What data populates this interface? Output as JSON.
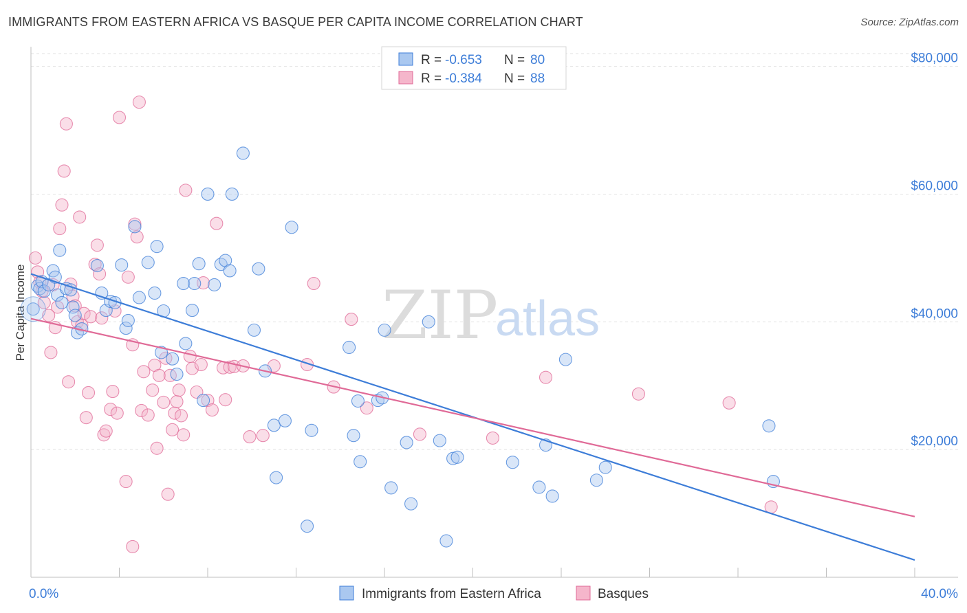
{
  "title": "IMMIGRANTS FROM EASTERN AFRICA VS BASQUE PER CAPITA INCOME CORRELATION CHART",
  "source": "Source: ZipAtlas.com",
  "watermark": {
    "zip": "ZIP",
    "atlas": "atlas"
  },
  "colors": {
    "blue": "#3d7dd8",
    "blue_fill": "#aac8f0",
    "pink": "#e06a97",
    "pink_fill": "#f5b6cb",
    "grid": "#e2e2e2",
    "axis": "#bfbfbf"
  },
  "chart_data": {
    "type": "scatter",
    "title": "IMMIGRANTS FROM EASTERN AFRICA VS BASQUE PER CAPITA INCOME CORRELATION CHART",
    "xlabel": "",
    "ylabel": "Per Capita Income",
    "xlim": [
      0,
      40
    ],
    "ylim": [
      0,
      82000
    ],
    "x_tick_labels": [
      "0.0%",
      "40.0%"
    ],
    "y_ticks": [
      20000,
      40000,
      60000,
      80000
    ],
    "y_tick_labels": [
      "$20,000",
      "$40,000",
      "$60,000",
      "$80,000"
    ],
    "grid": true,
    "legend_top": [
      {
        "r_label": "R =",
        "r_value": "-0.653",
        "n_label": "N =",
        "n_value": "80"
      },
      {
        "r_label": "R =",
        "r_value": "-0.384",
        "n_label": "N =",
        "n_value": "88"
      }
    ],
    "series": [
      {
        "name": "Immigrants from Eastern Africa",
        "color": "#3d7dd8",
        "trend": {
          "x": [
            0,
            40
          ],
          "y": [
            47500,
            2700
          ]
        },
        "points": [
          [
            0.1,
            42000
          ],
          [
            0.3,
            45600
          ],
          [
            0.4,
            45200
          ],
          [
            0.5,
            46300
          ],
          [
            0.6,
            44800
          ],
          [
            0.8,
            45800
          ],
          [
            1.0,
            48000
          ],
          [
            1.1,
            47000
          ],
          [
            1.2,
            44200
          ],
          [
            1.3,
            51200
          ],
          [
            1.4,
            43000
          ],
          [
            1.6,
            45200
          ],
          [
            1.8,
            45000
          ],
          [
            1.9,
            42300
          ],
          [
            2.0,
            41000
          ],
          [
            2.1,
            38300
          ],
          [
            2.3,
            38900
          ],
          [
            3.0,
            48800
          ],
          [
            3.2,
            44500
          ],
          [
            3.4,
            41800
          ],
          [
            3.6,
            43200
          ],
          [
            3.8,
            43000
          ],
          [
            4.1,
            48900
          ],
          [
            4.3,
            39000
          ],
          [
            4.4,
            40200
          ],
          [
            4.7,
            54900
          ],
          [
            4.9,
            43800
          ],
          [
            5.3,
            49300
          ],
          [
            5.6,
            44500
          ],
          [
            5.7,
            51800
          ],
          [
            5.9,
            35200
          ],
          [
            6.0,
            41700
          ],
          [
            6.4,
            34200
          ],
          [
            6.6,
            31800
          ],
          [
            6.9,
            46000
          ],
          [
            7.0,
            36600
          ],
          [
            7.3,
            41800
          ],
          [
            7.4,
            46000
          ],
          [
            7.6,
            49100
          ],
          [
            7.8,
            27700
          ],
          [
            8.0,
            60000
          ],
          [
            8.3,
            45800
          ],
          [
            8.6,
            49000
          ],
          [
            8.8,
            49600
          ],
          [
            9.0,
            48000
          ],
          [
            9.1,
            60000
          ],
          [
            9.6,
            66400
          ],
          [
            10.1,
            38700
          ],
          [
            10.3,
            48300
          ],
          [
            10.6,
            32300
          ],
          [
            11.0,
            23800
          ],
          [
            11.1,
            15600
          ],
          [
            11.5,
            24500
          ],
          [
            11.8,
            54800
          ],
          [
            12.7,
            23000
          ],
          [
            12.5,
            8000
          ],
          [
            14.4,
            36000
          ],
          [
            14.6,
            22200
          ],
          [
            14.8,
            27600
          ],
          [
            14.9,
            18100
          ],
          [
            15.7,
            27700
          ],
          [
            15.9,
            28100
          ],
          [
            16.0,
            38700
          ],
          [
            16.3,
            14000
          ],
          [
            17.0,
            21100
          ],
          [
            17.2,
            11500
          ],
          [
            18.0,
            40000
          ],
          [
            18.5,
            21400
          ],
          [
            18.8,
            5700
          ],
          [
            19.1,
            18600
          ],
          [
            19.3,
            18800
          ],
          [
            21.8,
            18000
          ],
          [
            23.0,
            14100
          ],
          [
            23.3,
            20700
          ],
          [
            23.6,
            12700
          ],
          [
            24.2,
            34100
          ],
          [
            25.6,
            15200
          ],
          [
            26.0,
            17200
          ],
          [
            33.4,
            23700
          ],
          [
            33.6,
            15000
          ]
        ]
      },
      {
        "name": "Basques",
        "color": "#e06a97",
        "trend": {
          "x": [
            0,
            40
          ],
          "y": [
            40500,
            9500
          ]
        },
        "points": [
          [
            0.2,
            50000
          ],
          [
            0.3,
            47800
          ],
          [
            0.4,
            46200
          ],
          [
            0.5,
            44800
          ],
          [
            0.6,
            43000
          ],
          [
            0.8,
            41000
          ],
          [
            0.9,
            35200
          ],
          [
            1.0,
            45800
          ],
          [
            1.1,
            39100
          ],
          [
            1.2,
            42300
          ],
          [
            1.3,
            54600
          ],
          [
            1.4,
            58300
          ],
          [
            1.5,
            63600
          ],
          [
            1.6,
            71000
          ],
          [
            1.7,
            30600
          ],
          [
            1.8,
            45900
          ],
          [
            1.9,
            44000
          ],
          [
            2.0,
            42500
          ],
          [
            2.1,
            40000
          ],
          [
            2.2,
            56400
          ],
          [
            2.3,
            39500
          ],
          [
            2.4,
            41300
          ],
          [
            2.5,
            25000
          ],
          [
            2.6,
            28900
          ],
          [
            2.7,
            40800
          ],
          [
            2.9,
            49000
          ],
          [
            3.0,
            52000
          ],
          [
            3.1,
            47500
          ],
          [
            3.2,
            40600
          ],
          [
            3.3,
            22300
          ],
          [
            3.4,
            22900
          ],
          [
            3.6,
            26300
          ],
          [
            3.7,
            29100
          ],
          [
            3.8,
            41700
          ],
          [
            3.9,
            25700
          ],
          [
            4.0,
            72000
          ],
          [
            4.3,
            15000
          ],
          [
            4.4,
            47000
          ],
          [
            4.6,
            36400
          ],
          [
            4.7,
            55300
          ],
          [
            4.8,
            53300
          ],
          [
            4.9,
            74400
          ],
          [
            5.0,
            26100
          ],
          [
            5.1,
            32200
          ],
          [
            5.3,
            25400
          ],
          [
            5.5,
            29300
          ],
          [
            5.6,
            33200
          ],
          [
            5.7,
            20200
          ],
          [
            5.8,
            31600
          ],
          [
            6.0,
            27400
          ],
          [
            6.1,
            34300
          ],
          [
            6.2,
            13000
          ],
          [
            6.3,
            31600
          ],
          [
            6.4,
            23100
          ],
          [
            6.5,
            25700
          ],
          [
            6.6,
            27500
          ],
          [
            6.7,
            29300
          ],
          [
            6.8,
            25300
          ],
          [
            6.9,
            22300
          ],
          [
            7.0,
            60600
          ],
          [
            7.2,
            34600
          ],
          [
            7.3,
            32700
          ],
          [
            7.5,
            29000
          ],
          [
            7.7,
            33300
          ],
          [
            7.8,
            46100
          ],
          [
            8.0,
            27700
          ],
          [
            8.2,
            26200
          ],
          [
            8.4,
            55400
          ],
          [
            8.7,
            32800
          ],
          [
            8.8,
            27800
          ],
          [
            9.0,
            32900
          ],
          [
            9.2,
            33000
          ],
          [
            9.6,
            33100
          ],
          [
            9.9,
            22000
          ],
          [
            10.5,
            22200
          ],
          [
            11.0,
            33100
          ],
          [
            12.8,
            46000
          ],
          [
            13.7,
            29800
          ],
          [
            14.5,
            40400
          ],
          [
            15.2,
            26500
          ],
          [
            17.6,
            22400
          ],
          [
            20.9,
            21800
          ],
          [
            23.3,
            31300
          ],
          [
            27.5,
            28700
          ],
          [
            31.6,
            27300
          ],
          [
            33.5,
            11000
          ],
          [
            4.6,
            4800
          ],
          [
            12.5,
            33300
          ]
        ]
      }
    ]
  },
  "legend_bottom": [
    {
      "label": "Immigrants from Eastern Africa"
    },
    {
      "label": "Basques"
    }
  ]
}
